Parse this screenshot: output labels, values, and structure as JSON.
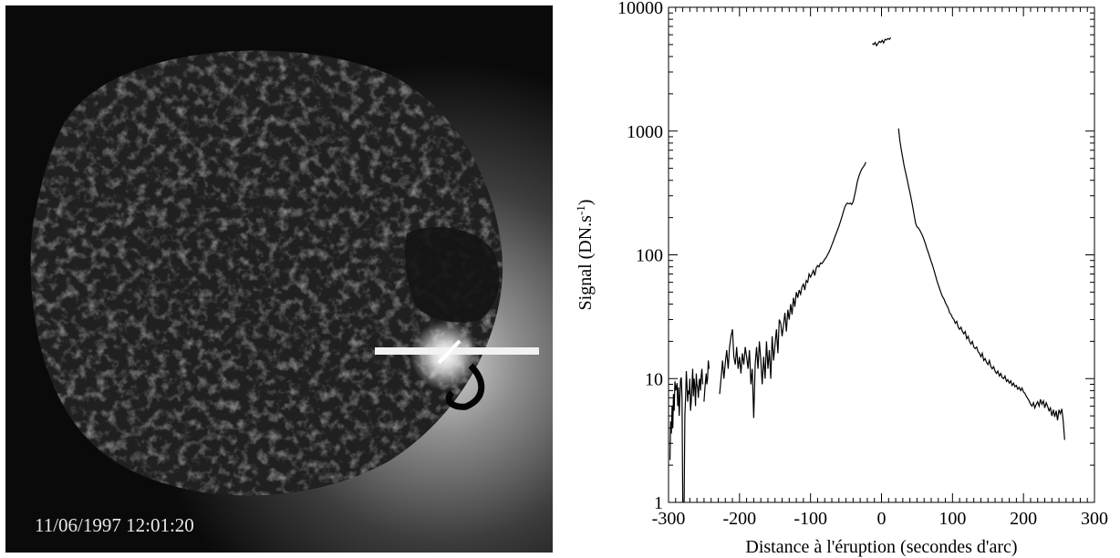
{
  "image_panel": {
    "timestamp": "11/06/1997 12:01:20",
    "colors": {
      "background": "#000000",
      "disk": "#2a2a2a",
      "corona": "#9a9a9a",
      "flare": "#ffffff"
    }
  },
  "chart_data": {
    "type": "line",
    "xlabel": "Distance à l'éruption (secondes d'arc)",
    "ylabel": "Signal (DN.s",
    "ylabel_sup": "-1",
    "ylabel_close": ")",
    "xlim": [
      -300,
      300
    ],
    "ylim": [
      1,
      10000
    ],
    "yscale": "log",
    "x_ticks": [
      -300,
      -200,
      -100,
      0,
      100,
      200,
      300
    ],
    "y_ticks": [
      1,
      10,
      100,
      1000,
      10000
    ],
    "grid": false,
    "line_color": "#000000",
    "series": [
      {
        "points": [
          [
            -298,
            2.2
          ],
          [
            -297,
            4.5
          ],
          [
            -296,
            3.6
          ],
          [
            -295,
            6.0
          ],
          [
            -294,
            4.0
          ],
          [
            -293,
            7.5
          ],
          [
            -292,
            5.5
          ],
          [
            -291,
            9.5
          ],
          [
            -290,
            8.0
          ],
          [
            -288,
            9.2
          ],
          [
            -287,
            6.0
          ],
          [
            -286,
            8.5
          ],
          [
            -285,
            5.0
          ],
          [
            -283,
            9.8
          ],
          [
            -282,
            10.2
          ],
          [
            -281,
            7.0
          ],
          [
            -280,
            1.0
          ]
        ]
      },
      {
        "points": [
          [
            -278,
            1.0
          ],
          [
            -277,
            5.0
          ],
          [
            -276,
            7.0
          ],
          [
            -275,
            11.5
          ],
          [
            -274,
            9.0
          ],
          [
            -273,
            6.5
          ],
          [
            -272,
            8.0
          ],
          [
            -271,
            7.5
          ],
          [
            -270,
            10.0
          ],
          [
            -269,
            5.5
          ],
          [
            -268,
            6.5
          ],
          [
            -267,
            8.8
          ],
          [
            -266,
            12.0
          ],
          [
            -265,
            7.2
          ],
          [
            -264,
            10.0
          ],
          [
            -263,
            8.5
          ],
          [
            -262,
            6.0
          ],
          [
            -261,
            11.0
          ],
          [
            -260,
            9.0
          ],
          [
            -259,
            8.5
          ],
          [
            -258,
            7.0
          ],
          [
            -257,
            9.5
          ],
          [
            -256,
            10.0
          ],
          [
            -255,
            8.0
          ],
          [
            -254,
            10.5
          ],
          [
            -253,
            12.0
          ],
          [
            -252,
            9.0
          ]
        ]
      },
      {
        "points": [
          [
            -250,
            6.5
          ],
          [
            -249,
            8.0
          ],
          [
            -248,
            9.5
          ],
          [
            -247,
            11.0
          ],
          [
            -246,
            9.0
          ],
          [
            -245,
            10.0
          ],
          [
            -244,
            14.0
          ],
          [
            -243,
            12.0
          ]
        ]
      },
      {
        "points": [
          [
            -228,
            7.5
          ],
          [
            -226,
            10.0
          ],
          [
            -224,
            14.0
          ],
          [
            -222,
            10.0
          ],
          [
            -220,
            13.5
          ],
          [
            -218,
            17.0
          ],
          [
            -216,
            12.0
          ],
          [
            -214,
            18.0
          ],
          [
            -212,
            22.0
          ],
          [
            -210,
            25.0
          ],
          [
            -208,
            15.0
          ],
          [
            -206,
            13.0
          ],
          [
            -204,
            18.0
          ],
          [
            -202,
            12.0
          ],
          [
            -200,
            15.0
          ],
          [
            -198,
            11.0
          ],
          [
            -196,
            16.0
          ],
          [
            -194,
            13.0
          ],
          [
            -192,
            18.0
          ],
          [
            -190,
            15.0
          ],
          [
            -188,
            12.0
          ],
          [
            -186,
            17.0
          ],
          [
            -184,
            9.0
          ],
          [
            -182,
            12.0
          ],
          [
            -180,
            4.8
          ],
          [
            -178,
            13.0
          ],
          [
            -176,
            18.0
          ],
          [
            -174,
            12.0
          ],
          [
            -172,
            20.0
          ],
          [
            -170,
            14.0
          ],
          [
            -168,
            9.0
          ],
          [
            -166,
            15.0
          ],
          [
            -164,
            10.0
          ],
          [
            -162,
            20.0
          ],
          [
            -160,
            12.0
          ],
          [
            -158,
            17.0
          ],
          [
            -156,
            10.0
          ],
          [
            -154,
            22.0
          ],
          [
            -152,
            14.0
          ],
          [
            -150,
            19.0
          ],
          [
            -148,
            25.0
          ],
          [
            -146,
            16.0
          ],
          [
            -144,
            30.0
          ],
          [
            -142,
            28.0
          ],
          [
            -140,
            22.0
          ],
          [
            -138,
            27.0
          ],
          [
            -136,
            34.0
          ],
          [
            -134,
            24.0
          ],
          [
            -132,
            36.0
          ],
          [
            -130,
            30.0
          ],
          [
            -128,
            40.0
          ],
          [
            -126,
            33.0
          ],
          [
            -124,
            45.0
          ],
          [
            -122,
            38.0
          ],
          [
            -120,
            50.0
          ],
          [
            -118,
            45.0
          ],
          [
            -116,
            52.0
          ],
          [
            -114,
            48.0
          ],
          [
            -112,
            55.0
          ],
          [
            -110,
            58.0
          ],
          [
            -108,
            52.0
          ],
          [
            -106,
            62.0
          ],
          [
            -104,
            60.0
          ],
          [
            -102,
            70.0
          ],
          [
            -100,
            66.0
          ],
          [
            -98,
            70.0
          ],
          [
            -96,
            75.0
          ],
          [
            -94,
            68.0
          ],
          [
            -92,
            78.0
          ],
          [
            -90,
            82.0
          ],
          [
            -88,
            80.0
          ],
          [
            -86,
            86.0
          ],
          [
            -84,
            85.0
          ],
          [
            -82,
            88.0
          ],
          [
            -80,
            92.0
          ],
          [
            -78,
            95.0
          ],
          [
            -76,
            100.0
          ],
          [
            -74,
            105.0
          ],
          [
            -72,
            112.0
          ],
          [
            -70,
            120.0
          ],
          [
            -68,
            128.0
          ],
          [
            -66,
            138.0
          ],
          [
            -64,
            148.0
          ],
          [
            -62,
            158.0
          ],
          [
            -60,
            170.0
          ],
          [
            -58,
            185.0
          ],
          [
            -56,
            200.0
          ],
          [
            -54,
            220.0
          ],
          [
            -52,
            240.0
          ],
          [
            -50,
            255.0
          ],
          [
            -48,
            262.0
          ],
          [
            -46,
            258.0
          ],
          [
            -44,
            262.0
          ],
          [
            -42,
            255.0
          ],
          [
            -40,
            268.0
          ],
          [
            -38,
            300.0
          ],
          [
            -36,
            340.0
          ],
          [
            -34,
            390.0
          ],
          [
            -32,
            430.0
          ],
          [
            -30,
            460.0
          ],
          [
            -28,
            490.0
          ],
          [
            -26,
            510.0
          ],
          [
            -24,
            530.0
          ],
          [
            -22,
            560.0
          ]
        ]
      },
      {
        "points": [
          [
            -13,
            5100
          ],
          [
            -11,
            5000
          ],
          [
            -9,
            5200
          ],
          [
            -7,
            4900
          ],
          [
            -5,
            5100
          ],
          [
            -3,
            5300
          ],
          [
            -1,
            5200
          ],
          [
            1,
            5400
          ],
          [
            3,
            5150
          ],
          [
            5,
            5500
          ],
          [
            7,
            5450
          ],
          [
            9,
            5600
          ],
          [
            11,
            5500
          ],
          [
            13,
            5700
          ]
        ]
      },
      {
        "points": [
          [
            24,
            1050
          ],
          [
            26,
            830
          ],
          [
            28,
            700
          ],
          [
            30,
            600
          ],
          [
            32,
            520
          ],
          [
            34,
            460
          ],
          [
            36,
            410
          ],
          [
            38,
            360
          ],
          [
            40,
            320
          ],
          [
            42,
            280
          ],
          [
            44,
            245
          ],
          [
            46,
            210
          ],
          [
            48,
            180
          ],
          [
            50,
            168
          ],
          [
            52,
            165
          ],
          [
            54,
            158
          ],
          [
            56,
            150
          ],
          [
            58,
            142
          ],
          [
            60,
            132
          ],
          [
            62,
            122
          ],
          [
            64,
            112
          ],
          [
            66,
            104
          ],
          [
            68,
            96
          ],
          [
            70,
            88
          ],
          [
            72,
            82
          ],
          [
            74,
            75
          ],
          [
            76,
            68
          ],
          [
            78,
            62
          ],
          [
            80,
            57
          ],
          [
            82,
            53
          ],
          [
            84,
            49
          ],
          [
            86,
            46
          ],
          [
            88,
            44
          ],
          [
            90,
            41
          ],
          [
            92,
            39
          ],
          [
            94,
            37
          ],
          [
            96,
            34
          ],
          [
            98,
            33
          ],
          [
            100,
            31
          ],
          [
            102,
            30
          ],
          [
            104,
            28
          ],
          [
            106,
            29
          ],
          [
            108,
            26
          ],
          [
            110,
            25
          ],
          [
            112,
            26
          ],
          [
            114,
            24
          ],
          [
            116,
            23
          ],
          [
            118,
            24
          ],
          [
            120,
            21
          ],
          [
            122,
            22
          ],
          [
            124,
            20
          ],
          [
            126,
            19
          ],
          [
            128,
            20
          ],
          [
            130,
            18
          ],
          [
            132,
            17.5
          ],
          [
            134,
            18
          ],
          [
            136,
            16.5
          ],
          [
            138,
            16
          ],
          [
            140,
            15
          ],
          [
            142,
            16
          ],
          [
            144,
            14
          ],
          [
            146,
            14.5
          ],
          [
            148,
            13.5
          ],
          [
            150,
            13
          ],
          [
            152,
            14
          ],
          [
            154,
            12.5
          ],
          [
            156,
            12
          ],
          [
            158,
            12.5
          ],
          [
            160,
            11.5
          ],
          [
            162,
            11
          ],
          [
            164,
            11.5
          ],
          [
            166,
            10.5
          ],
          [
            168,
            11
          ],
          [
            170,
            10.2
          ],
          [
            172,
            10
          ],
          [
            174,
            10.5
          ],
          [
            176,
            9.5
          ],
          [
            178,
            9.8
          ],
          [
            180,
            9.2
          ],
          [
            182,
            9.6
          ],
          [
            184,
            8.8
          ],
          [
            186,
            9.2
          ],
          [
            188,
            8.6
          ],
          [
            190,
            8.8
          ],
          [
            192,
            8.2
          ],
          [
            194,
            8.5
          ],
          [
            196,
            8.0
          ],
          [
            198,
            8.4
          ],
          [
            200,
            7.8
          ],
          [
            202,
            7.6
          ],
          [
            204,
            7.2
          ],
          [
            206,
            6.9
          ],
          [
            208,
            6.6
          ],
          [
            210,
            6.2
          ],
          [
            212,
            6.0
          ],
          [
            214,
            6.4
          ],
          [
            216,
            5.8
          ],
          [
            218,
            6.2
          ],
          [
            220,
            6.5
          ],
          [
            222,
            6.0
          ],
          [
            224,
            6.8
          ],
          [
            226,
            6.2
          ],
          [
            228,
            6.6
          ],
          [
            230,
            5.8
          ],
          [
            232,
            6.4
          ],
          [
            234,
            6.0
          ],
          [
            236,
            5.5
          ],
          [
            238,
            5.8
          ],
          [
            240,
            5.0
          ],
          [
            242,
            5.6
          ],
          [
            244,
            4.9
          ],
          [
            246,
            5.5
          ],
          [
            248,
            4.6
          ],
          [
            250,
            5.6
          ],
          [
            252,
            5.2
          ],
          [
            254,
            5.7
          ],
          [
            256,
            4.5
          ],
          [
            258,
            3.2
          ]
        ]
      }
    ]
  }
}
